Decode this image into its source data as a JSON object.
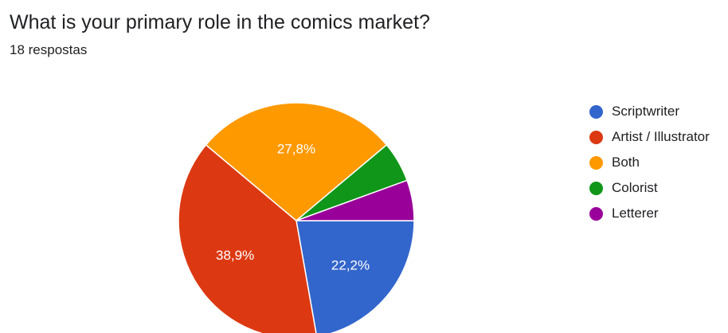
{
  "question": {
    "title": "What is your primary role in the comics market?",
    "response_count": "18 respostas"
  },
  "chart_data": {
    "type": "pie",
    "title": "What is your primary role in the comics market?",
    "total_responses": 18,
    "slices": [
      {
        "label": "Scriptwriter",
        "value": 4,
        "percent_label": "22,2%",
        "color": "#3366cc"
      },
      {
        "label": "Artist / Illustrator",
        "value": 7,
        "percent_label": "38,9%",
        "color": "#dc3912"
      },
      {
        "label": "Both",
        "value": 5,
        "percent_label": "27,8%",
        "color": "#ff9900"
      },
      {
        "label": "Colorist",
        "value": 1,
        "percent_label": "",
        "color": "#109618"
      },
      {
        "label": "Letterer",
        "value": 1,
        "percent_label": "",
        "color": "#990099"
      }
    ],
    "legend_position": "right",
    "label_color": "#ffffff"
  }
}
